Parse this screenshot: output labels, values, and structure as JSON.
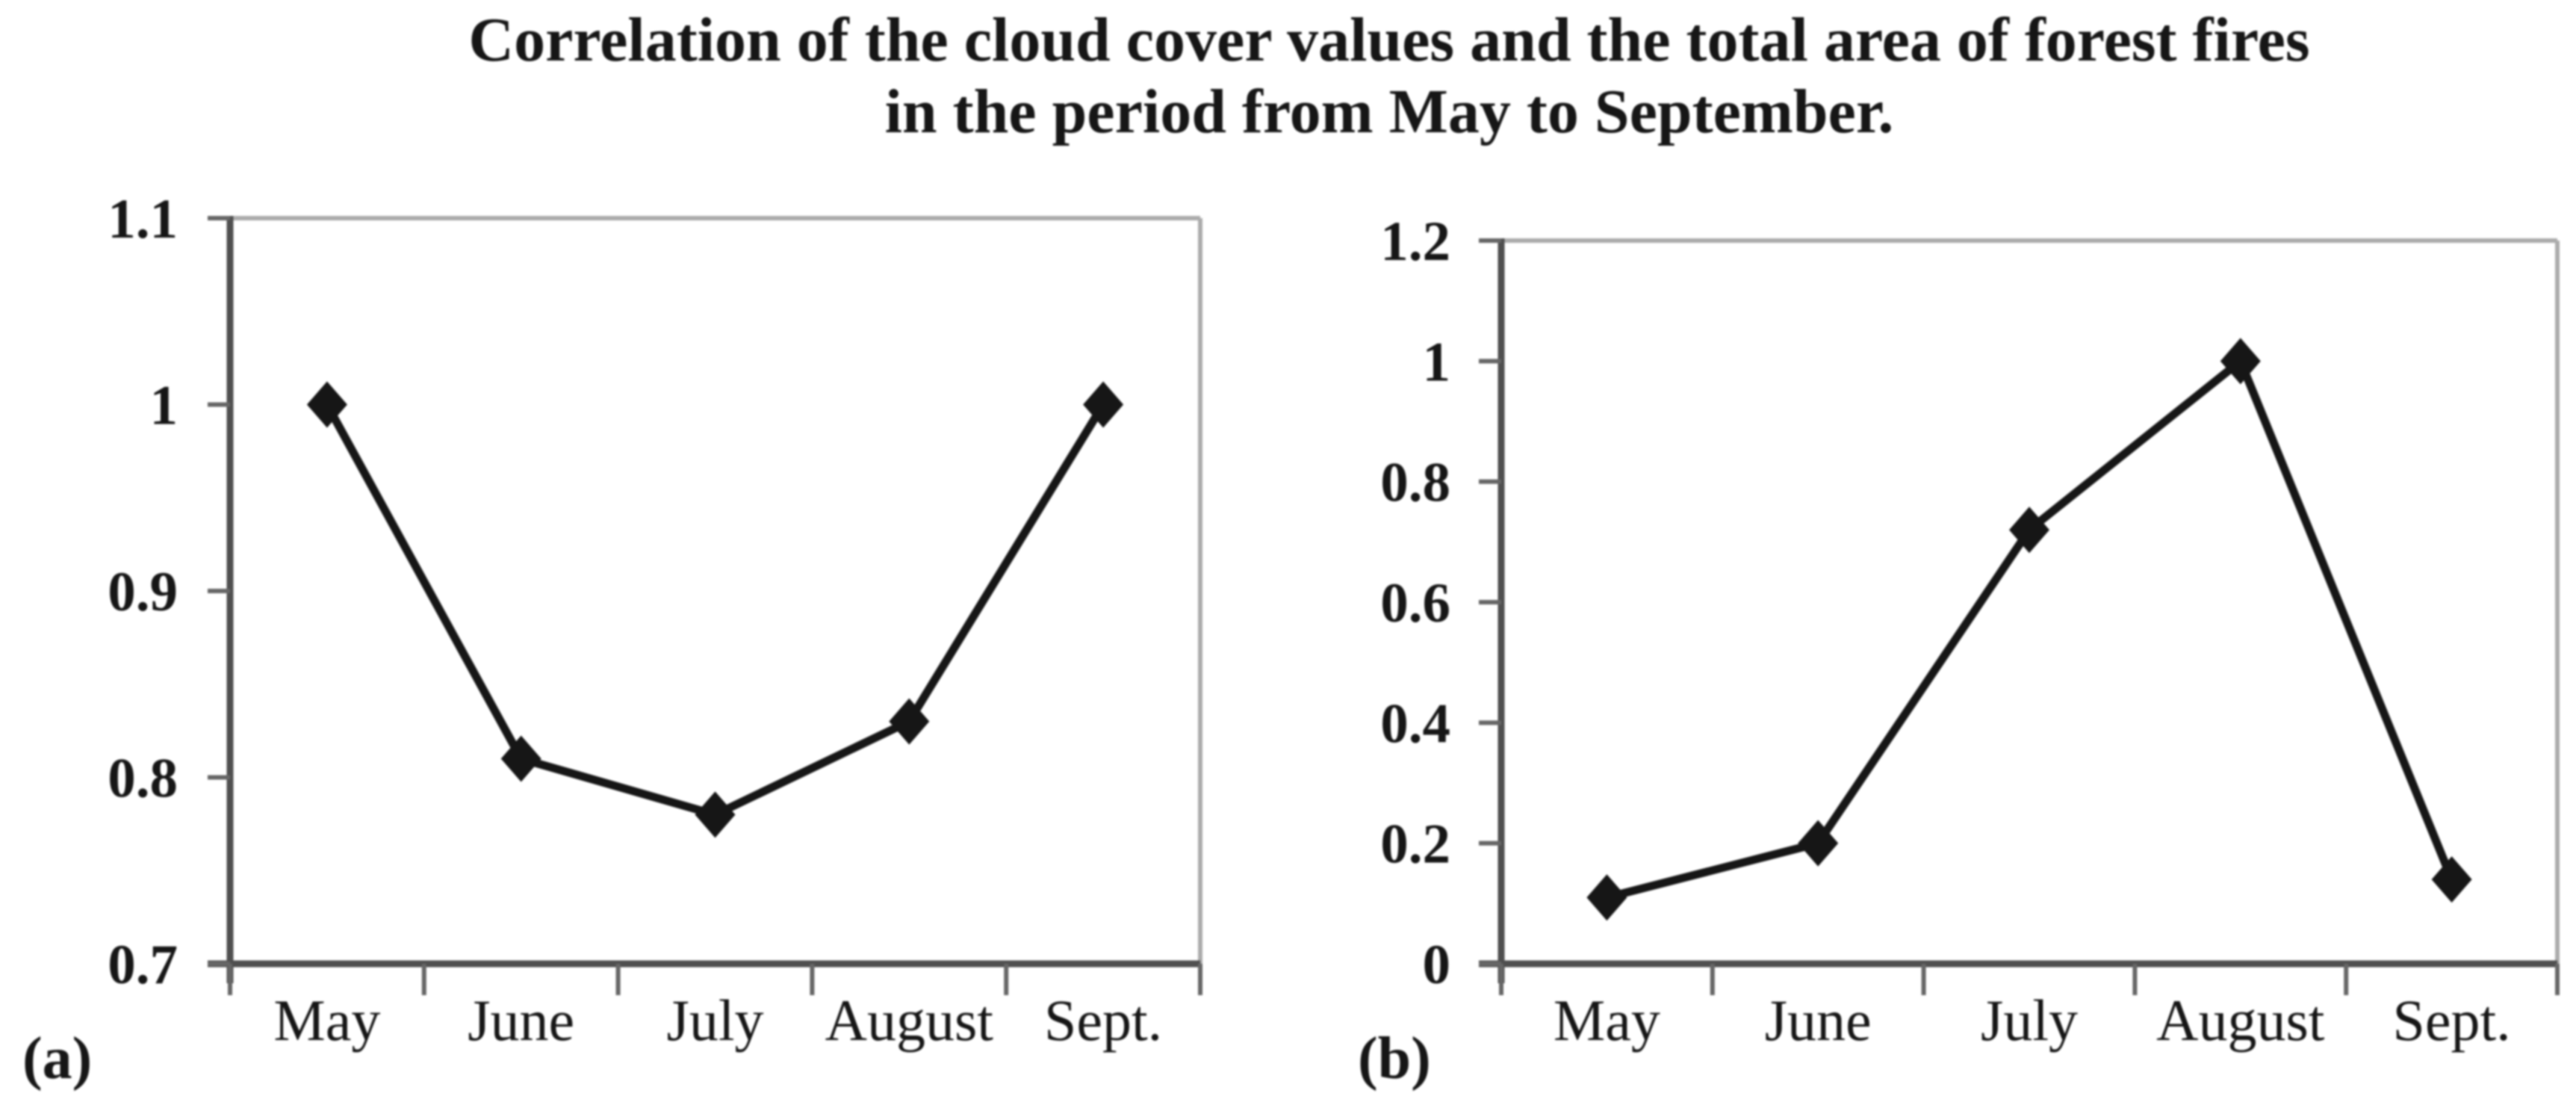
{
  "title": {
    "line1": "Correlation of the cloud cover values and the total area of forest fires",
    "line2": "in the period from May to September."
  },
  "colors": {
    "ink": "#161616",
    "axis": "#4f4f4f",
    "tick": "#666666",
    "plot_border": "#ababab",
    "background": "#ffffff"
  },
  "chart_data": [
    {
      "type": "line",
      "panel_label": "(a)",
      "categories": [
        "May",
        "June",
        "July",
        "August",
        "Sept."
      ],
      "values": [
        1.0,
        0.81,
        0.78,
        0.83,
        1.0
      ],
      "ylim": [
        0.7,
        1.1
      ],
      "ytick_values": [
        0.7,
        0.8,
        0.9,
        1.0,
        1.1
      ],
      "ytick_labels": [
        "0.7",
        "0.8",
        "0.9",
        "1",
        "1.1"
      ],
      "marker": "diamond",
      "grid": false,
      "legend": false
    },
    {
      "type": "line",
      "panel_label": "(b)",
      "categories": [
        "May",
        "June",
        "July",
        "August",
        "Sept."
      ],
      "values": [
        0.11,
        0.2,
        0.72,
        1.0,
        0.14
      ],
      "ylim": [
        0,
        1.2
      ],
      "ytick_values": [
        0,
        0.2,
        0.4,
        0.6,
        0.8,
        1.0,
        1.2
      ],
      "ytick_labels": [
        "0",
        "0.2",
        "0.4",
        "0.6",
        "0.8",
        "1",
        "1.2"
      ],
      "marker": "diamond",
      "grid": false,
      "legend": false
    }
  ]
}
